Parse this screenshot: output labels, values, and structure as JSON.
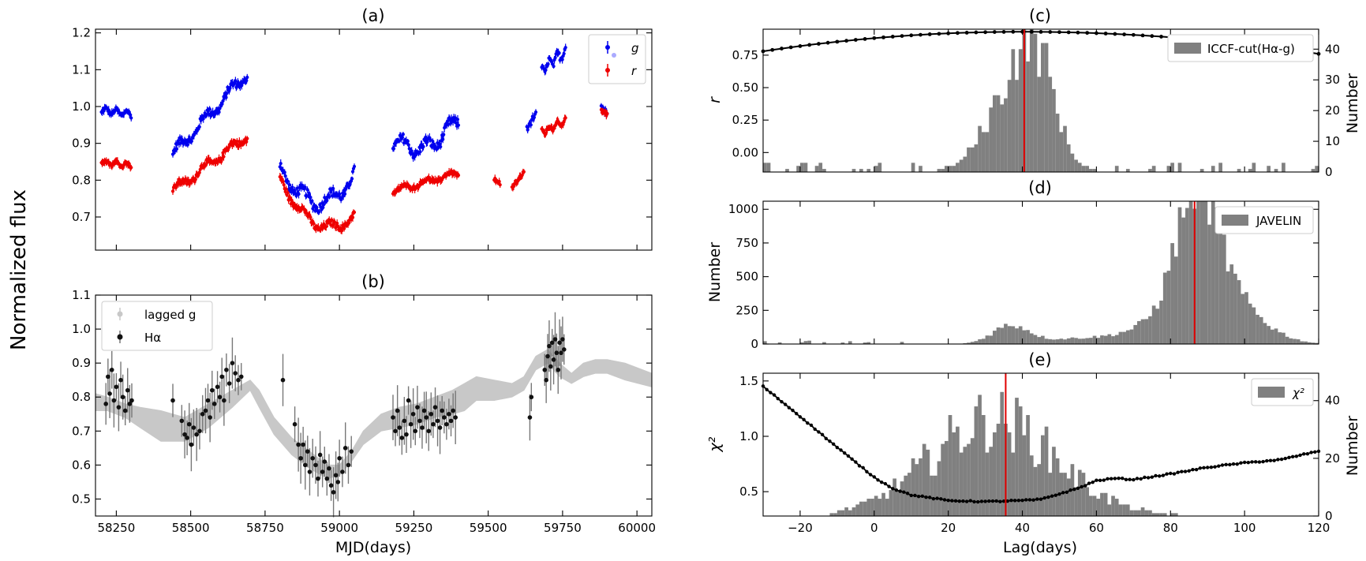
{
  "figure": {
    "ylabel_left": "Normalized flux"
  },
  "colors": {
    "g": "#0000ee",
    "r": "#ee0000",
    "halpha": "#111111",
    "lagged": "#c8c8c8",
    "hist": "#808080",
    "vline": "#e00000",
    "curve": "#000000"
  },
  "chart_data": [
    {
      "id": "a",
      "type": "scatter",
      "title": "(a)",
      "xlabel": "",
      "ylabel": "",
      "xlim": [
        58180,
        60050
      ],
      "ylim": [
        0.61,
        1.21
      ],
      "xticks": [
        58250,
        58500,
        58750,
        59000,
        59250,
        59500,
        59750,
        60000
      ],
      "yticks": [
        "0.7",
        "0.8",
        "0.9",
        "1.0",
        "1.1",
        "1.2"
      ],
      "legend": {
        "position": "top-right",
        "entries": [
          "g",
          "r"
        ]
      },
      "series": [
        {
          "name": "g",
          "segments": [
            {
              "x0": 58200,
              "x1": 58300,
              "y0": 0.99,
              "y1": 0.98,
              "amp": 0.012
            },
            {
              "x0": 58440,
              "x1": 58690,
              "y0": 0.87,
              "y1": 1.09,
              "amp": 0.025
            },
            {
              "x0": 58800,
              "x1": 59050,
              "y0": 0.83,
              "y1": 0.81,
              "amp": 0.03,
              "dip": 0.08
            },
            {
              "x0": 59180,
              "x1": 59400,
              "y0": 0.91,
              "y1": 0.97,
              "amp": 0.03,
              "dip": 0.05
            },
            {
              "x0": 59630,
              "x1": 59660,
              "y0": 0.94,
              "y1": 0.98,
              "amp": 0.01
            },
            {
              "x0": 59680,
              "x1": 59760,
              "y0": 1.1,
              "y1": 1.15,
              "amp": 0.02
            },
            {
              "x0": 59880,
              "x1": 59900,
              "y0": 1.0,
              "y1": 0.98,
              "amp": 0.01
            }
          ]
        },
        {
          "name": "r",
          "segments": [
            {
              "x0": 58200,
              "x1": 58300,
              "y0": 0.85,
              "y1": 0.84,
              "amp": 0.01
            },
            {
              "x0": 58440,
              "x1": 58690,
              "y0": 0.77,
              "y1": 0.92,
              "amp": 0.02
            },
            {
              "x0": 58800,
              "x1": 59050,
              "y0": 0.8,
              "y1": 0.7,
              "amp": 0.02,
              "dip": 0.07
            },
            {
              "x0": 59180,
              "x1": 59400,
              "y0": 0.77,
              "y1": 0.82,
              "amp": 0.012
            },
            {
              "x0": 59520,
              "x1": 59540,
              "y0": 0.8,
              "y1": 0.79,
              "amp": 0.008
            },
            {
              "x0": 59580,
              "x1": 59620,
              "y0": 0.78,
              "y1": 0.82,
              "amp": 0.008
            },
            {
              "x0": 59680,
              "x1": 59760,
              "y0": 0.93,
              "y1": 0.96,
              "amp": 0.012
            },
            {
              "x0": 59880,
              "x1": 59900,
              "y0": 0.99,
              "y1": 0.98,
              "amp": 0.008
            }
          ]
        }
      ]
    },
    {
      "id": "b",
      "type": "scatter",
      "title": "(b)",
      "xlabel": "MJD(days)",
      "ylabel": "",
      "xlim": [
        58180,
        60050
      ],
      "ylim": [
        0.45,
        1.1
      ],
      "xticks": [
        58250,
        58500,
        58750,
        59000,
        59250,
        59500,
        59750,
        60000
      ],
      "xticklabels": [
        "58250",
        "58500",
        "58750",
        "59000",
        "59250",
        "59500",
        "59750",
        "60000"
      ],
      "yticks": [
        "0.5",
        "0.6",
        "0.7",
        "0.8",
        "0.9",
        "1.0",
        "1.1"
      ],
      "legend": {
        "position": "top-left",
        "entries": [
          "lagged g",
          "Hα"
        ]
      },
      "lagged_band": {
        "x": [
          58180,
          58220,
          58280,
          58330,
          58400,
          58480,
          58560,
          58640,
          58700,
          58730,
          58780,
          58840,
          58900,
          58960,
          59000,
          59040,
          59080,
          59140,
          59200,
          59260,
          59320,
          59380,
          59420,
          59460,
          59520,
          59580,
          59620,
          59660,
          59700,
          59740,
          59780,
          59820,
          59860,
          59900,
          59960,
          60050
        ],
        "upper": [
          0.81,
          0.8,
          0.78,
          0.77,
          0.76,
          0.74,
          0.78,
          0.82,
          0.85,
          0.82,
          0.74,
          0.68,
          0.64,
          0.6,
          0.6,
          0.64,
          0.7,
          0.75,
          0.77,
          0.78,
          0.8,
          0.82,
          0.84,
          0.86,
          0.85,
          0.84,
          0.86,
          0.92,
          0.94,
          0.9,
          0.87,
          0.9,
          0.91,
          0.91,
          0.9,
          0.87
        ],
        "lower": [
          0.76,
          0.76,
          0.74,
          0.71,
          0.67,
          0.67,
          0.71,
          0.77,
          0.82,
          0.77,
          0.69,
          0.63,
          0.59,
          0.56,
          0.57,
          0.61,
          0.66,
          0.7,
          0.71,
          0.72,
          0.74,
          0.75,
          0.76,
          0.79,
          0.79,
          0.8,
          0.82,
          0.88,
          0.9,
          0.86,
          0.84,
          0.86,
          0.87,
          0.87,
          0.85,
          0.83
        ]
      },
      "halpha": [
        [
          58215,
          0.78
        ],
        [
          58222,
          0.86
        ],
        [
          58228,
          0.81
        ],
        [
          58235,
          0.88
        ],
        [
          58242,
          0.79
        ],
        [
          58250,
          0.83
        ],
        [
          58258,
          0.77
        ],
        [
          58265,
          0.85
        ],
        [
          58272,
          0.8
        ],
        [
          58280,
          0.76
        ],
        [
          58288,
          0.82
        ],
        [
          58295,
          0.78
        ],
        [
          58302,
          0.79
        ],
        [
          58440,
          0.79
        ],
        [
          58470,
          0.73
        ],
        [
          58480,
          0.69
        ],
        [
          58488,
          0.68
        ],
        [
          58495,
          0.72
        ],
        [
          58502,
          0.66
        ],
        [
          58510,
          0.71
        ],
        [
          58520,
          0.69
        ],
        [
          58530,
          0.7
        ],
        [
          58540,
          0.75
        ],
        [
          58550,
          0.76
        ],
        [
          58558,
          0.79
        ],
        [
          58565,
          0.74
        ],
        [
          58572,
          0.82
        ],
        [
          58580,
          0.78
        ],
        [
          58590,
          0.83
        ],
        [
          58598,
          0.8
        ],
        [
          58605,
          0.86
        ],
        [
          58612,
          0.79
        ],
        [
          58620,
          0.88
        ],
        [
          58630,
          0.84
        ],
        [
          58640,
          0.9
        ],
        [
          58650,
          0.87
        ],
        [
          58660,
          0.85
        ],
        [
          58670,
          0.86
        ],
        [
          58810,
          0.85
        ],
        [
          58850,
          0.72
        ],
        [
          58862,
          0.66
        ],
        [
          58870,
          0.62
        ],
        [
          58878,
          0.66
        ],
        [
          58885,
          0.6
        ],
        [
          58893,
          0.64
        ],
        [
          58900,
          0.58
        ],
        [
          58910,
          0.62
        ],
        [
          58920,
          0.6
        ],
        [
          58928,
          0.56
        ],
        [
          58935,
          0.63
        ],
        [
          58943,
          0.58
        ],
        [
          58950,
          0.61
        ],
        [
          58958,
          0.56
        ],
        [
          58965,
          0.59
        ],
        [
          58972,
          0.54
        ],
        [
          58980,
          0.52
        ],
        [
          58988,
          0.57
        ],
        [
          58995,
          0.55
        ],
        [
          59000,
          0.62
        ],
        [
          59010,
          0.58
        ],
        [
          59020,
          0.65
        ],
        [
          59030,
          0.6
        ],
        [
          59040,
          0.64
        ],
        [
          59180,
          0.74
        ],
        [
          59188,
          0.7
        ],
        [
          59195,
          0.76
        ],
        [
          59202,
          0.71
        ],
        [
          59210,
          0.68
        ],
        [
          59218,
          0.73
        ],
        [
          59225,
          0.69
        ],
        [
          59232,
          0.79
        ],
        [
          59240,
          0.72
        ],
        [
          59248,
          0.75
        ],
        [
          59255,
          0.7
        ],
        [
          59262,
          0.77
        ],
        [
          59270,
          0.73
        ],
        [
          59278,
          0.71
        ],
        [
          59285,
          0.76
        ],
        [
          59292,
          0.74
        ],
        [
          59300,
          0.7
        ],
        [
          59308,
          0.75
        ],
        [
          59315,
          0.72
        ],
        [
          59322,
          0.77
        ],
        [
          59330,
          0.73
        ],
        [
          59338,
          0.71
        ],
        [
          59345,
          0.76
        ],
        [
          59352,
          0.74
        ],
        [
          59360,
          0.72
        ],
        [
          59368,
          0.75
        ],
        [
          59375,
          0.73
        ],
        [
          59382,
          0.76
        ],
        [
          59390,
          0.74
        ],
        [
          59640,
          0.74
        ],
        [
          59645,
          0.8
        ],
        [
          59690,
          0.88
        ],
        [
          59695,
          0.85
        ],
        [
          59700,
          0.92
        ],
        [
          59705,
          0.95
        ],
        [
          59710,
          0.89
        ],
        [
          59715,
          0.96
        ],
        [
          59720,
          0.91
        ],
        [
          59725,
          0.97
        ],
        [
          59730,
          0.93
        ],
        [
          59735,
          0.88
        ],
        [
          59740,
          0.96
        ],
        [
          59745,
          0.93
        ],
        [
          59750,
          0.97
        ],
        [
          59755,
          0.94
        ]
      ]
    },
    {
      "id": "c",
      "type": "bar",
      "title": "(c)",
      "xlabel": "",
      "ylabel": "r",
      "ylabel_right": "Number",
      "xlim": [
        -30,
        120
      ],
      "ylim": [
        -0.15,
        0.95
      ],
      "ylim_right": [
        0,
        46.5
      ],
      "yticks": [
        "0.00",
        "0.25",
        "0.50",
        "0.75"
      ],
      "yticks_right": [
        "0",
        "10",
        "20",
        "30",
        "40"
      ],
      "legend": {
        "position": "top-right",
        "entries": [
          "ICCF-cut(Hα-g)"
        ]
      },
      "vline": 40.5,
      "hist": {
        "start": -30,
        "width": 1,
        "peak_a": 38,
        "sig_a": 7.5,
        "peak_b": 44,
        "sig_b": 5,
        "height": 42
      },
      "curve": {
        "peak_x": 40,
        "peak_y": 0.93,
        "y_left": 0.78,
        "y_right": 0.76
      }
    },
    {
      "id": "d",
      "type": "bar",
      "title": "(d)",
      "xlabel": "",
      "ylabel": "Number",
      "xlim": [
        -30,
        120
      ],
      "ylim": [
        0,
        1060
      ],
      "yticks": [
        "0",
        "250",
        "500",
        "750",
        "1000"
      ],
      "legend": {
        "position": "top-right",
        "entries": [
          "JAVELIN"
        ]
      },
      "vline": 86.5,
      "hist": {
        "start": -30,
        "width": 1,
        "main_peak": 87,
        "main_sig": 5.5,
        "main_height": 960,
        "second_peak": 37,
        "second_sig": 5,
        "second_height": 140
      }
    },
    {
      "id": "e",
      "type": "bar",
      "title": "(e)",
      "xlabel": "Lag(days)",
      "ylabel": "χ²",
      "ylabel_right": "Number",
      "xlim": [
        -30,
        120
      ],
      "ylim": [
        0.28,
        1.57
      ],
      "ylim_right": [
        0,
        49.5
      ],
      "xticks": [
        -20,
        0,
        20,
        40,
        60,
        80,
        100,
        120
      ],
      "xticklabels": [
        "−20",
        "0",
        "20",
        "40",
        "60",
        "80",
        "100",
        "120"
      ],
      "yticks": [
        "0.5",
        "1.0",
        "1.5"
      ],
      "yticks_right": [
        "0",
        "20",
        "40"
      ],
      "legend": {
        "position": "top-right",
        "entries": [
          "χ²"
        ]
      },
      "vline": 35.5,
      "hist": {
        "start": -30,
        "width": 1,
        "peak": 32,
        "sig": 17,
        "height": 36
      },
      "curve": {
        "x": [
          -30,
          -20,
          -10,
          0,
          5,
          10,
          20,
          30,
          40,
          45,
          50,
          55,
          60,
          65,
          70,
          80,
          90,
          100,
          110,
          119
        ],
        "y": [
          1.45,
          1.18,
          0.9,
          0.63,
          0.53,
          0.47,
          0.42,
          0.41,
          0.42,
          0.43,
          0.48,
          0.53,
          0.6,
          0.62,
          0.61,
          0.66,
          0.72,
          0.76,
          0.79,
          0.86
        ]
      }
    }
  ]
}
